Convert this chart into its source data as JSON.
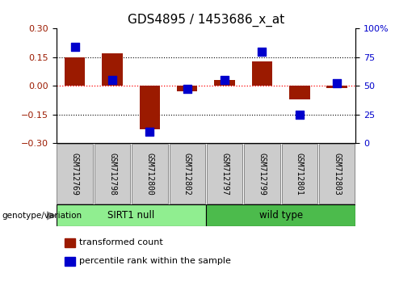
{
  "title": "GDS4895 / 1453686_x_at",
  "samples": [
    "GSM712769",
    "GSM712798",
    "GSM712800",
    "GSM712802",
    "GSM712797",
    "GSM712799",
    "GSM712801",
    "GSM712803"
  ],
  "groups": [
    {
      "name": "SIRT1 null",
      "color": "#90EE90",
      "indices": [
        0,
        1,
        2,
        3
      ]
    },
    {
      "name": "wild type",
      "color": "#4CBB4C",
      "indices": [
        4,
        5,
        6,
        7
      ]
    }
  ],
  "red_bars": [
    0.15,
    0.17,
    -0.23,
    -0.03,
    0.03,
    0.13,
    -0.07,
    -0.01
  ],
  "blue_markers": [
    84,
    55,
    10,
    47,
    55,
    80,
    25,
    52
  ],
  "ylim_left": [
    -0.3,
    0.3
  ],
  "ylim_right": [
    0,
    100
  ],
  "yticks_left": [
    -0.3,
    -0.15,
    0,
    0.15,
    0.3
  ],
  "yticks_right": [
    0,
    25,
    50,
    75,
    100
  ],
  "hlines": [
    -0.15,
    0,
    0.15
  ],
  "bar_color": "#9B1A00",
  "marker_color": "#0000CC",
  "bar_width": 0.55,
  "marker_size": 45,
  "genotype_label": "genotype/variation",
  "legend_items": [
    {
      "color": "#9B1A00",
      "label": "transformed count"
    },
    {
      "color": "#0000CC",
      "label": "percentile rank within the sample"
    }
  ],
  "title_fontsize": 11,
  "tick_fontsize": 8,
  "legend_fontsize": 8,
  "sample_fontsize": 7,
  "group_fontsize": 8.5
}
